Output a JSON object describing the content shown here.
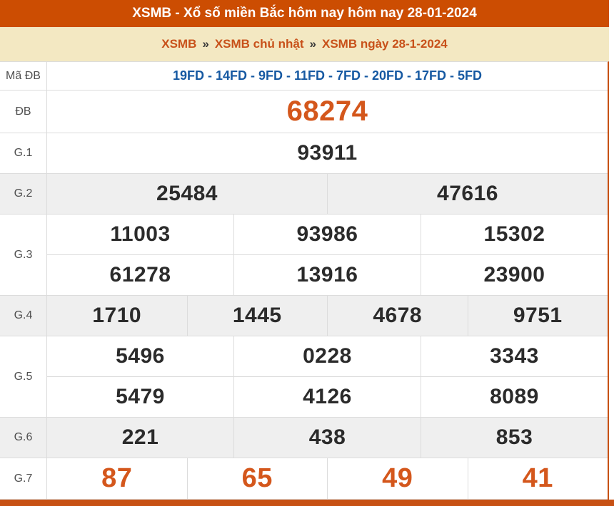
{
  "header": {
    "title": "XSMB - Xổ số miền Bắc hôm nay hôm nay 28-01-2024"
  },
  "breadcrumb": {
    "separator": "»",
    "items": [
      "XSMB",
      "XSMB chủ nhật",
      "XSMB ngày 28-1-2024"
    ]
  },
  "colors": {
    "header_bg": "#CC4D02",
    "breadcrumb_bg": "#F3E8C2",
    "breadcrumb_link": "#C8511A",
    "code_blue": "#1659A2",
    "prize_orange": "#D4571C",
    "number_black": "#2b2b2b",
    "gray_row_bg": "#EFEFEF",
    "accent_border": "#C75114"
  },
  "table": {
    "rows": [
      {
        "label": "Mã ĐB",
        "values": [
          "19FD - 14FD - 9FD - 11FD - 7FD - 20FD - 17FD - 5FD"
        ]
      },
      {
        "label": "ĐB",
        "values": [
          "68274"
        ]
      },
      {
        "label": "G.1",
        "values": [
          "93911"
        ]
      },
      {
        "label": "G.2",
        "values": [
          "25484",
          "47616"
        ]
      },
      {
        "label": "G.3",
        "values": [
          [
            "11003",
            "93986",
            "15302"
          ],
          [
            "61278",
            "13916",
            "23900"
          ]
        ]
      },
      {
        "label": "G.4",
        "values": [
          "1710",
          "1445",
          "4678",
          "9751"
        ]
      },
      {
        "label": "G.5",
        "values": [
          [
            "5496",
            "0228",
            "3343"
          ],
          [
            "5479",
            "4126",
            "8089"
          ]
        ]
      },
      {
        "label": "G.6",
        "values": [
          "221",
          "438",
          "853"
        ]
      },
      {
        "label": "G.7",
        "values": [
          "87",
          "65",
          "49",
          "41"
        ]
      }
    ]
  }
}
